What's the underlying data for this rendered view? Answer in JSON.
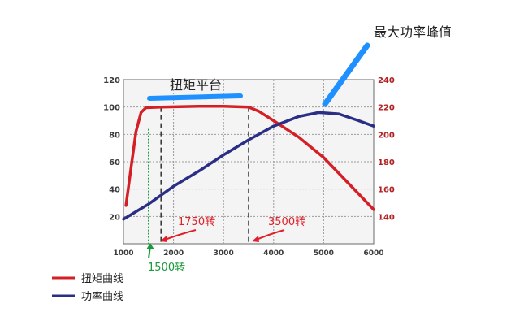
{
  "chart_data": {
    "type": "line",
    "x_axis": {
      "range": [
        1000,
        6000
      ],
      "ticks": [
        1000,
        2000,
        3000,
        4000,
        5000,
        6000
      ]
    },
    "y_left": {
      "range": [
        0,
        120
      ],
      "ticks": [
        20,
        40,
        60,
        80,
        100,
        120
      ]
    },
    "y_right": {
      "range": [
        120,
        240
      ],
      "ticks": [
        140,
        160,
        180,
        200,
        220,
        240
      ]
    },
    "grid": true,
    "series": [
      {
        "name": "扭矩曲线",
        "axis": "left",
        "color": "#d41f26",
        "points": [
          [
            1050,
            28
          ],
          [
            1150,
            55
          ],
          [
            1250,
            82
          ],
          [
            1350,
            96
          ],
          [
            1450,
            99.5
          ],
          [
            1750,
            100
          ],
          [
            2500,
            100.5
          ],
          [
            3000,
            100.5
          ],
          [
            3500,
            100
          ],
          [
            3700,
            97
          ],
          [
            4000,
            90
          ],
          [
            4500,
            78
          ],
          [
            5000,
            63
          ],
          [
            5500,
            44
          ],
          [
            6000,
            25
          ]
        ]
      },
      {
        "name": "功率曲线",
        "axis": "left",
        "color": "#2a2f85",
        "points": [
          [
            1000,
            18
          ],
          [
            1500,
            29
          ],
          [
            2000,
            42
          ],
          [
            2500,
            53
          ],
          [
            3000,
            65
          ],
          [
            3500,
            76
          ],
          [
            4000,
            86
          ],
          [
            4500,
            93
          ],
          [
            4900,
            96
          ],
          [
            5300,
            95
          ],
          [
            5700,
            90
          ],
          [
            6000,
            86
          ]
        ]
      }
    ],
    "vertical_markers": [
      {
        "x": 1500,
        "color": "#1a9a3a",
        "style": "dotted"
      },
      {
        "x": 1750,
        "color": "#333333",
        "style": "dashed"
      },
      {
        "x": 3500,
        "color": "#333333",
        "style": "dashed"
      }
    ],
    "annotations": {
      "plateau": "扭矩平台",
      "peak": "最大功率峰值",
      "rpm_1750": "1750转",
      "rpm_3500": "3500转",
      "rpm_1500": "1500转"
    },
    "legend": {
      "placement": "bottom-left",
      "items": [
        "扭矩曲线",
        "功率曲线"
      ]
    }
  },
  "colors": {
    "highlight_blue": "#1e90ff",
    "annotation_red": "#e0202a",
    "annotation_green": "#1a9a3a"
  }
}
